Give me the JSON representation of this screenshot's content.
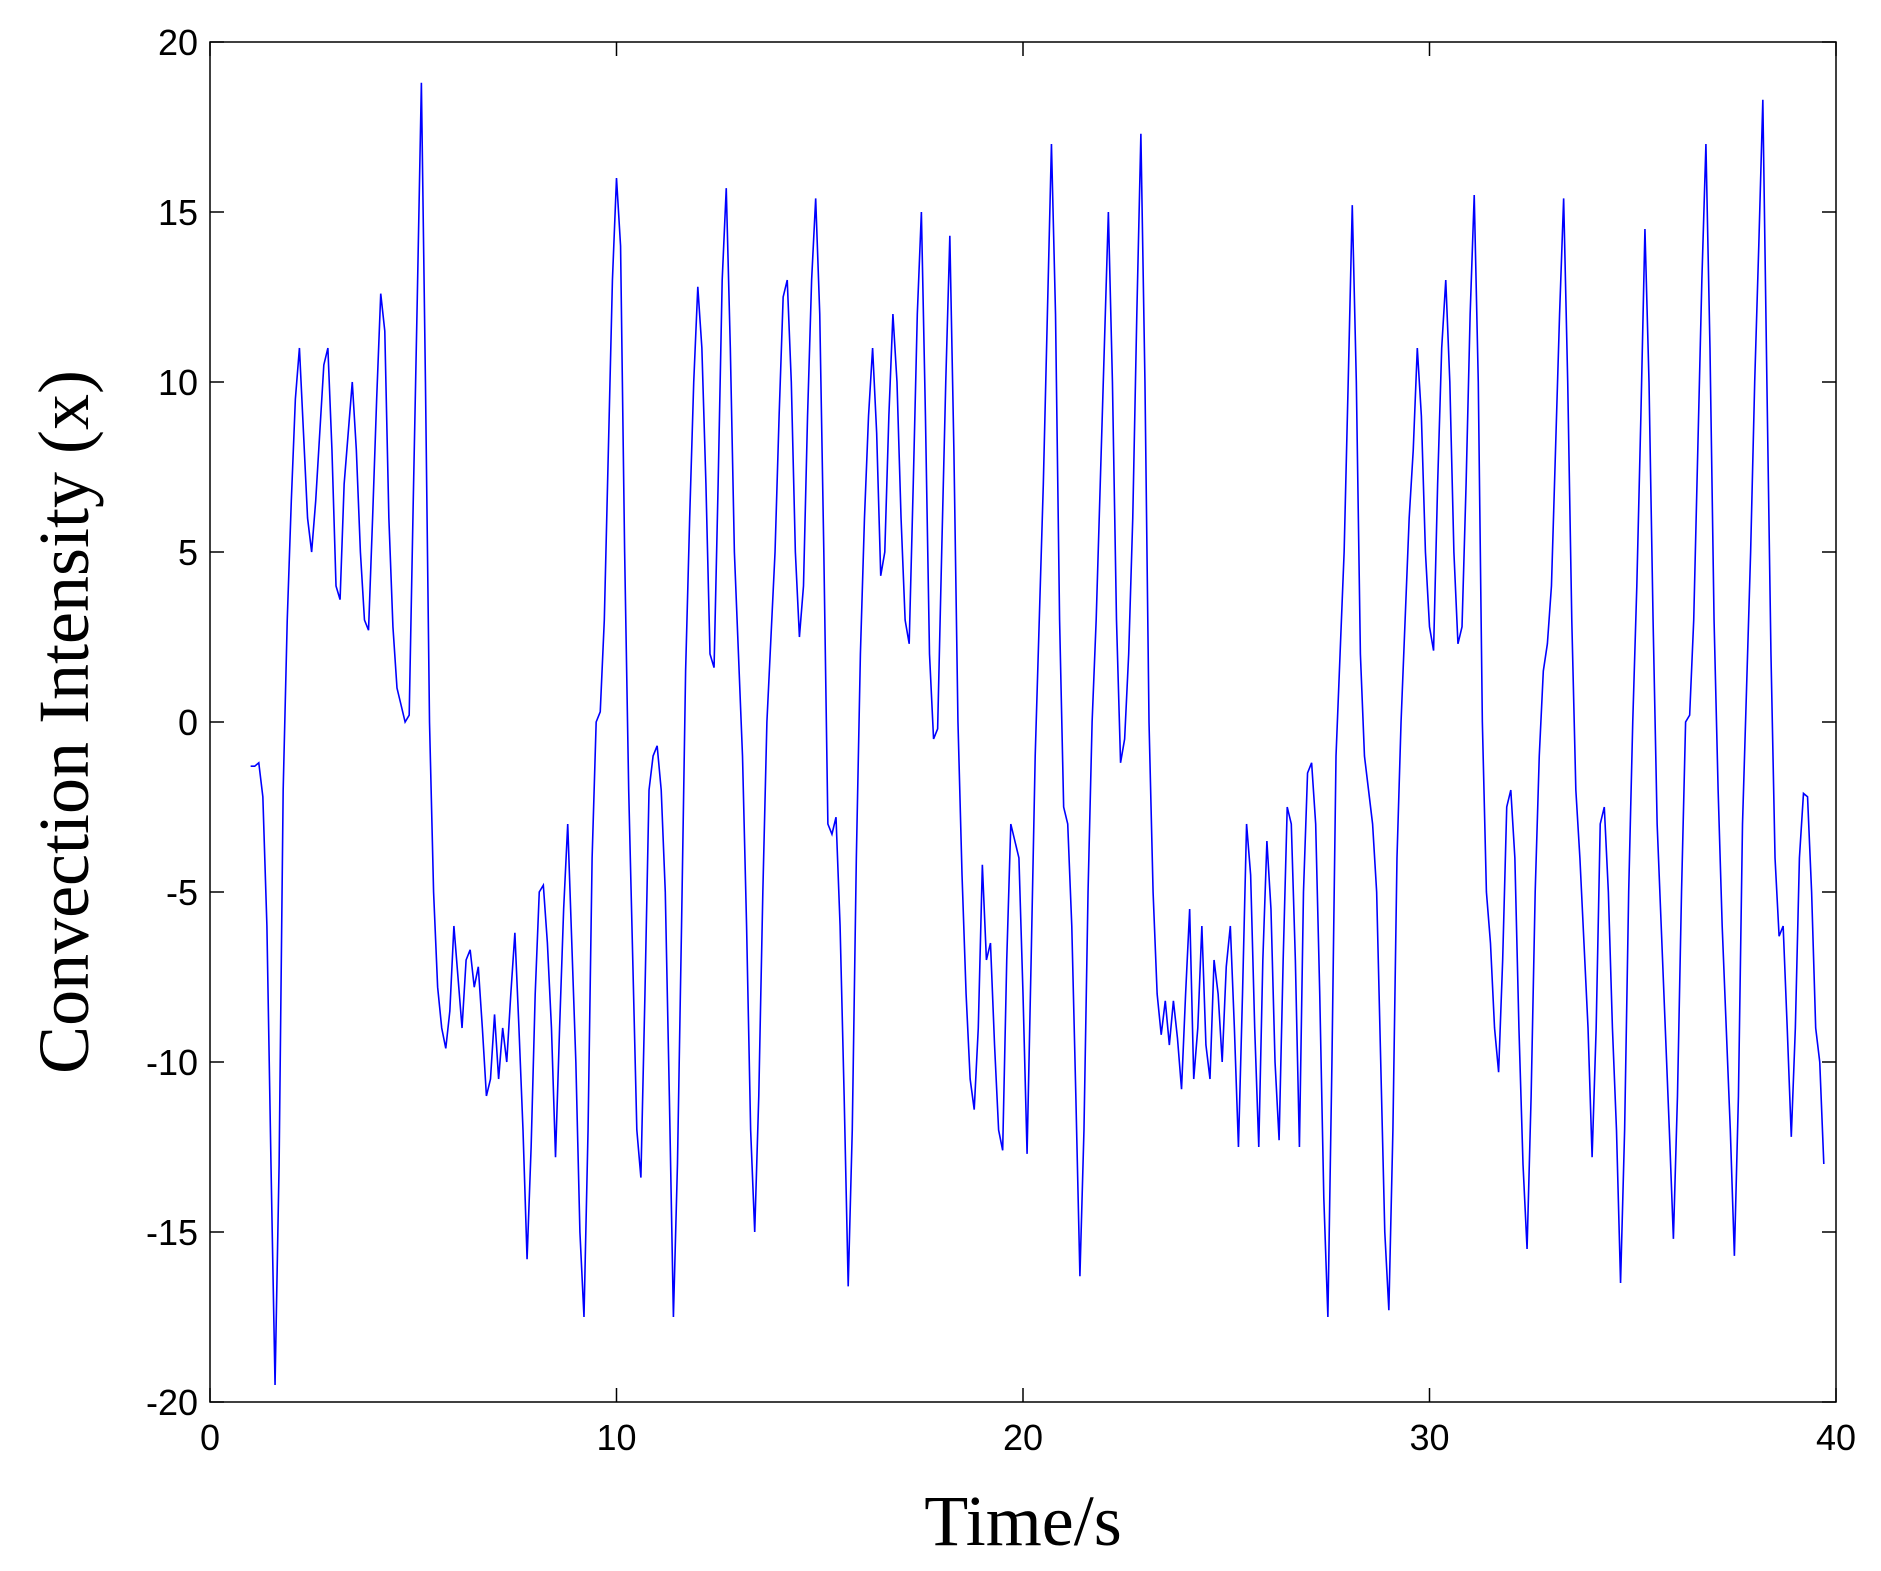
{
  "chart_data": {
    "type": "line",
    "xlabel": "Time/s",
    "ylabel": "Convection Intensity (x)",
    "color": "#0000ff",
    "xlim": [
      0,
      40
    ],
    "ylim": [
      -20,
      20
    ],
    "xticks": [
      0,
      10,
      20,
      30,
      40
    ],
    "yticks": [
      -20,
      -15,
      -10,
      -5,
      0,
      5,
      10,
      15,
      20
    ],
    "x": [
      1,
      1.1,
      1.2,
      1.3,
      1.4,
      1.5,
      1.6,
      1.7,
      1.8,
      1.9,
      2,
      2.1,
      2.2,
      2.3,
      2.4,
      2.5,
      2.6,
      2.7,
      2.8,
      2.9,
      3,
      3.1,
      3.2,
      3.3,
      3.4,
      3.5,
      3.6,
      3.7,
      3.8,
      3.9,
      4,
      4.1,
      4.2,
      4.3,
      4.4,
      4.5,
      4.6,
      4.7,
      4.8,
      4.9,
      5,
      5.1,
      5.2,
      5.3,
      5.4,
      5.5,
      5.6,
      5.7,
      5.8,
      5.9,
      6,
      6.1,
      6.2,
      6.3,
      6.4,
      6.5,
      6.6,
      6.7,
      6.8,
      6.9,
      7,
      7.1,
      7.2,
      7.3,
      7.4,
      7.5,
      7.6,
      7.7,
      7.8,
      7.9,
      8,
      8.1,
      8.2,
      8.3,
      8.4,
      8.5,
      8.6,
      8.7,
      8.8,
      8.9,
      9,
      9.1,
      9.2,
      9.3,
      9.4,
      9.5,
      9.6,
      9.7,
      9.8,
      9.9,
      10,
      10.1,
      10.2,
      10.3,
      10.4,
      10.5,
      10.6,
      10.7,
      10.8,
      10.9,
      11,
      11.1,
      11.2,
      11.3,
      11.4,
      11.5,
      11.6,
      11.7,
      11.8,
      11.9,
      12,
      12.1,
      12.2,
      12.3,
      12.4,
      12.5,
      12.6,
      12.7,
      12.8,
      12.9,
      13,
      13.1,
      13.2,
      13.3,
      13.4,
      13.5,
      13.6,
      13.7,
      13.8,
      13.9,
      14,
      14.1,
      14.2,
      14.3,
      14.4,
      14.5,
      14.6,
      14.7,
      14.8,
      14.9,
      15,
      15.1,
      15.2,
      15.3,
      15.4,
      15.5,
      15.6,
      15.7,
      15.8,
      15.9,
      16,
      16.1,
      16.2,
      16.3,
      16.4,
      16.5,
      16.6,
      16.7,
      16.8,
      16.9,
      17,
      17.1,
      17.2,
      17.3,
      17.4,
      17.5,
      17.6,
      17.7,
      17.8,
      17.9,
      18,
      18.1,
      18.2,
      18.3,
      18.4,
      18.5,
      18.6,
      18.7,
      18.8,
      18.9,
      19,
      19.1,
      19.2,
      19.3,
      19.4,
      19.5,
      19.6,
      19.7,
      19.8,
      19.9,
      20,
      20.1,
      20.2,
      20.3,
      20.4,
      20.5,
      20.6,
      20.7,
      20.8,
      20.9,
      21,
      21.1,
      21.2,
      21.3,
      21.4,
      21.5,
      21.6,
      21.7,
      21.8,
      21.9,
      22,
      22.1,
      22.2,
      22.3,
      22.4,
      22.5,
      22.6,
      22.7,
      22.8,
      22.9,
      23,
      23.1,
      23.2,
      23.3,
      23.4,
      23.5,
      23.6,
      23.7,
      23.8,
      23.9,
      24,
      24.1,
      24.2,
      24.3,
      24.4,
      24.5,
      24.6,
      24.7,
      24.8,
      24.9,
      25,
      25.1,
      25.2,
      25.3,
      25.4,
      25.5,
      25.6,
      25.7,
      25.8,
      25.9,
      26,
      26.1,
      26.2,
      26.3,
      26.4,
      26.5,
      26.6,
      26.7,
      26.8,
      26.9,
      27,
      27.1,
      27.2,
      27.3,
      27.4,
      27.5,
      27.6,
      27.7,
      27.8,
      27.9,
      28,
      28.1,
      28.2,
      28.3,
      28.4,
      28.5,
      28.6,
      28.7,
      28.8,
      28.9,
      29,
      29.1,
      29.2,
      29.3,
      29.4,
      29.5,
      29.6,
      29.7,
      29.8,
      29.9,
      30,
      30.1,
      30.2,
      30.3,
      30.4,
      30.5,
      30.6,
      30.7,
      30.8,
      30.9,
      31,
      31.1,
      31.2,
      31.3,
      31.4,
      31.5,
      31.6,
      31.7,
      31.8,
      31.9,
      32,
      32.1,
      32.2,
      32.3,
      32.4,
      32.5,
      32.6,
      32.7,
      32.8,
      32.9,
      33,
      33.1,
      33.2,
      33.3,
      33.4,
      33.5,
      33.6,
      33.7,
      33.8,
      33.9,
      34,
      34.1,
      34.2,
      34.3,
      34.4,
      34.5,
      34.6,
      34.7,
      34.8,
      34.9,
      35,
      35.1,
      35.2,
      35.3,
      35.4,
      35.5,
      35.6,
      35.7,
      35.8,
      35.9,
      36,
      36.1,
      36.2,
      36.3,
      36.4,
      36.5,
      36.6,
      36.7,
      36.8,
      36.9,
      37,
      37.1,
      37.2,
      37.3,
      37.4,
      37.5,
      37.6,
      37.7,
      37.8,
      37.9,
      38,
      38.1,
      38.2,
      38.3,
      38.4,
      38.5,
      38.6,
      38.7,
      38.8,
      38.9,
      39,
      39.1,
      39.2,
      39.3,
      39.4,
      39.5,
      39.6,
      39.7
    ],
    "values": [
      -1.3,
      -1.3,
      -1.2,
      -2.2,
      -6,
      -13,
      -19.5,
      -13,
      -2,
      3,
      6.5,
      9.5,
      11,
      8.5,
      6,
      5,
      6.5,
      8.5,
      10.5,
      11,
      8,
      4,
      3.6,
      7,
      8.5,
      10,
      8,
      5,
      3,
      2.7,
      6,
      9.5,
      12.6,
      11.5,
      6,
      2.8,
      1,
      0.5,
      0,
      0.2,
      6.5,
      12.5,
      18.8,
      10,
      0,
      -5,
      -7.8,
      -9,
      -9.6,
      -8.5,
      -6,
      -7.5,
      -9,
      -7,
      -6.7,
      -7.8,
      -7.2,
      -9,
      -11,
      -10.5,
      -8.6,
      -10.5,
      -9,
      -10,
      -8,
      -6.2,
      -9,
      -12,
      -15.8,
      -12.5,
      -8,
      -5,
      -4.8,
      -6.5,
      -9,
      -12.8,
      -9,
      -5.5,
      -3,
      -6.5,
      -10,
      -15,
      -17.5,
      -12,
      -4,
      0,
      0.3,
      3,
      8,
      13,
      16,
      14,
      5,
      -2,
      -7,
      -12,
      -13.4,
      -8,
      -2,
      -1,
      -0.7,
      -2,
      -5,
      -11,
      -17.5,
      -13,
      -6,
      1.5,
      6,
      10,
      12.8,
      11,
      7,
      2,
      1.6,
      7,
      13,
      15.7,
      11,
      5,
      2,
      -1,
      -6,
      -12,
      -15,
      -11,
      -5,
      0,
      2.5,
      5,
      9,
      12.5,
      13,
      10,
      5,
      2.5,
      4,
      9,
      13,
      15.4,
      12,
      5,
      -3,
      -3.3,
      -2.8,
      -6,
      -11,
      -16.6,
      -12,
      -4,
      2,
      6,
      9,
      11,
      8.5,
      4.3,
      5,
      9,
      12,
      10,
      6,
      3,
      2.3,
      7,
      12,
      15,
      9,
      2,
      -0.5,
      -0.2,
      5,
      10,
      14.3,
      8,
      0,
      -4.5,
      -8,
      -10.5,
      -11.4,
      -9,
      -4.2,
      -7,
      -6.5,
      -9.5,
      -12,
      -12.6,
      -7,
      -3,
      -3.5,
      -4,
      -8,
      -12.7,
      -7,
      -1,
      3,
      7,
      12,
      17,
      12,
      3,
      -2.5,
      -3,
      -6,
      -11,
      -16.3,
      -12,
      -5,
      0,
      3,
      7,
      11,
      15,
      10,
      3,
      -1.2,
      -0.5,
      2,
      6,
      12,
      17.3,
      10,
      0,
      -5,
      -8,
      -9.2,
      -8.2,
      -9.5,
      -8.2,
      -9.3,
      -10.8,
      -8,
      -5.5,
      -10.5,
      -9,
      -6,
      -9.5,
      -10.5,
      -7,
      -8,
      -10,
      -7.2,
      -6,
      -9,
      -12.5,
      -8,
      -3,
      -4.5,
      -9,
      -12.5,
      -7,
      -3.5,
      -5.5,
      -10,
      -12.3,
      -7,
      -2.5,
      -3,
      -7,
      -12.5,
      -5,
      -1.5,
      -1.2,
      -3,
      -8,
      -14,
      -17.5,
      -10,
      -1,
      2,
      5,
      10,
      15.2,
      10,
      2,
      -1,
      -2,
      -3,
      -5,
      -10,
      -15,
      -17.3,
      -12,
      -4,
      0,
      3,
      6,
      8,
      11,
      9,
      5,
      2.8,
      2.1,
      7,
      11,
      13,
      10,
      5,
      2.3,
      2.8,
      7,
      12,
      15.5,
      10,
      0,
      -5,
      -6.5,
      -9,
      -10.3,
      -7,
      -2.5,
      -2,
      -4,
      -9,
      -13,
      -15.5,
      -11,
      -5,
      -1,
      1.5,
      2.3,
      4,
      8,
      12,
      15.4,
      10,
      3,
      -2,
      -4,
      -6.5,
      -9,
      -12.8,
      -9,
      -3,
      -2.5,
      -5,
      -9,
      -12,
      -16.5,
      -12,
      -5,
      0,
      4,
      9,
      14.5,
      10,
      3,
      -3,
      -6,
      -9,
      -12,
      -15.2,
      -11,
      -5,
      0,
      0.2,
      3,
      8,
      13,
      17,
      11,
      3,
      -2,
      -6,
      -9,
      -12,
      -15.7,
      -11,
      -3,
      1,
      5,
      10,
      14,
      18.3,
      10,
      2,
      -4,
      -6.3,
      -6,
      -9,
      -12.2,
      -9,
      -4,
      -2.1,
      -2.2,
      -5,
      -9,
      -10,
      -13
    ]
  }
}
